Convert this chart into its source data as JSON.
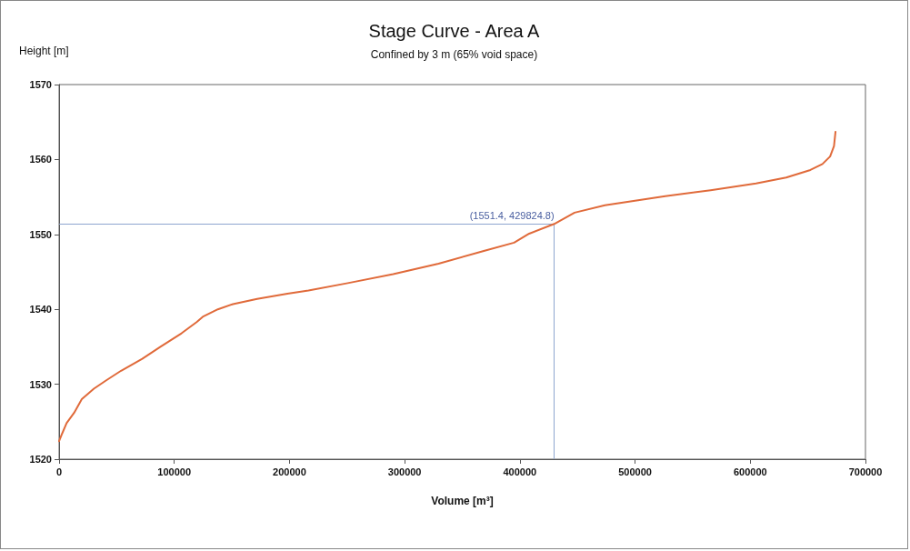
{
  "chart_data": {
    "type": "line",
    "title": "Stage Curve - Area A",
    "subtitle": "Confined by 3 m (65% void space)",
    "xlabel": "Volume [m³]",
    "ylabel": "Height [m]",
    "xlim": [
      0,
      700000
    ],
    "xticks": [
      0,
      100000,
      200000,
      300000,
      400000,
      500000,
      600000,
      700000
    ],
    "ylim": [
      1520,
      1570
    ],
    "yticks": [
      1520,
      1530,
      1540,
      1550,
      1560,
      1570
    ],
    "grid": false,
    "marker": "none",
    "line_style": "solid",
    "series": [
      {
        "color": "#e06a3a",
        "x": [
          0,
          2600,
          6500,
          13100,
          19700,
          30200,
          40700,
          53800,
          72200,
          88000,
          106300,
          119400,
          124700,
          137800,
          150900,
          171900,
          198200,
          216500,
          250600,
          290000,
          329400,
          368700,
          395000,
          408100,
          429824.8,
          447500,
          473800,
          500000,
          526200,
          565600,
          605000,
          631200,
          652200,
          662700,
          669300,
          672700,
          674000
        ],
        "values": [
          1522.4,
          1523.4,
          1524.8,
          1526.2,
          1528.0,
          1529.4,
          1530.5,
          1531.8,
          1533.4,
          1535.0,
          1536.8,
          1538.3,
          1539.0,
          1540.0,
          1540.7,
          1541.4,
          1542.1,
          1542.5,
          1543.5,
          1544.7,
          1546.1,
          1547.8,
          1548.9,
          1550.1,
          1551.4,
          1552.9,
          1553.9,
          1554.5,
          1555.1,
          1555.9,
          1556.8,
          1557.6,
          1558.6,
          1559.4,
          1560.4,
          1561.8,
          1563.7
        ]
      }
    ],
    "ref_lines": [
      {
        "axis": "y",
        "value": 1551.4,
        "label": "(1551.4, 429824.8)",
        "color": "#8ea6cf",
        "line_style": "solid"
      },
      {
        "axis": "x",
        "value": 429824.8,
        "color": "#8ea6cf",
        "line_style": "solid"
      }
    ]
  }
}
